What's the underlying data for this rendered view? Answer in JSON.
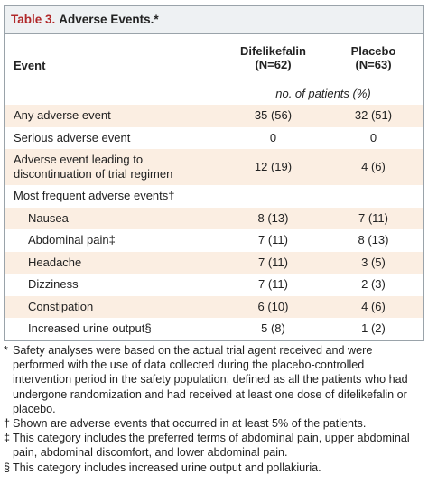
{
  "title": {
    "label": "Table 3.",
    "text": "Adverse Events.*"
  },
  "table": {
    "event_header": "Event",
    "groups": [
      {
        "name": "Difelikefalin",
        "n": "(N=62)"
      },
      {
        "name": "Placebo",
        "n": "(N=63)"
      }
    ],
    "units": "no. of patients (%)",
    "rows": [
      {
        "label": "Any adverse event",
        "values": [
          "35 (56)",
          "32 (51)"
        ]
      },
      {
        "label": "Serious adverse event",
        "values": [
          "0",
          "0"
        ]
      },
      {
        "label": "Adverse event leading to discontinuation of trial regimen",
        "values": [
          "12 (19)",
          "4 (6)"
        ]
      },
      {
        "label": "Most frequent adverse events†"
      },
      {
        "label": "Nausea",
        "indent": true,
        "values": [
          "8 (13)",
          "7 (11)"
        ]
      },
      {
        "label": "Abdominal pain‡",
        "indent": true,
        "values": [
          "7 (11)",
          "8 (13)"
        ]
      },
      {
        "label": "Headache",
        "indent": true,
        "values": [
          "7 (11)",
          "3 (5)"
        ]
      },
      {
        "label": "Dizziness",
        "indent": true,
        "values": [
          "7 (11)",
          "2 (3)"
        ]
      },
      {
        "label": "Constipation",
        "indent": true,
        "values": [
          "6 (10)",
          "4 (6)"
        ]
      },
      {
        "label": "Increased urine output§",
        "indent": true,
        "values": [
          "5 (8)",
          "1 (2)"
        ]
      }
    ]
  },
  "footnotes": [
    {
      "mark": "*",
      "text": "Safety analyses were based on the actual trial agent received and were performed with the use of data collected during the placebo-controlled intervention period in the safety population, defined as all the patients who had undergone randomization and had received at least one dose of difelikefalin or placebo."
    },
    {
      "mark": "†",
      "text": "Shown are adverse events that occurred in at least 5% of the patients."
    },
    {
      "mark": "‡",
      "text": "This category includes the preferred terms of abdominal pain, upper abdominal pain, abdominal discomfort, and lower abdominal pain."
    },
    {
      "mark": "§",
      "text": "This category includes increased urine output and pollakiuria."
    }
  ]
}
